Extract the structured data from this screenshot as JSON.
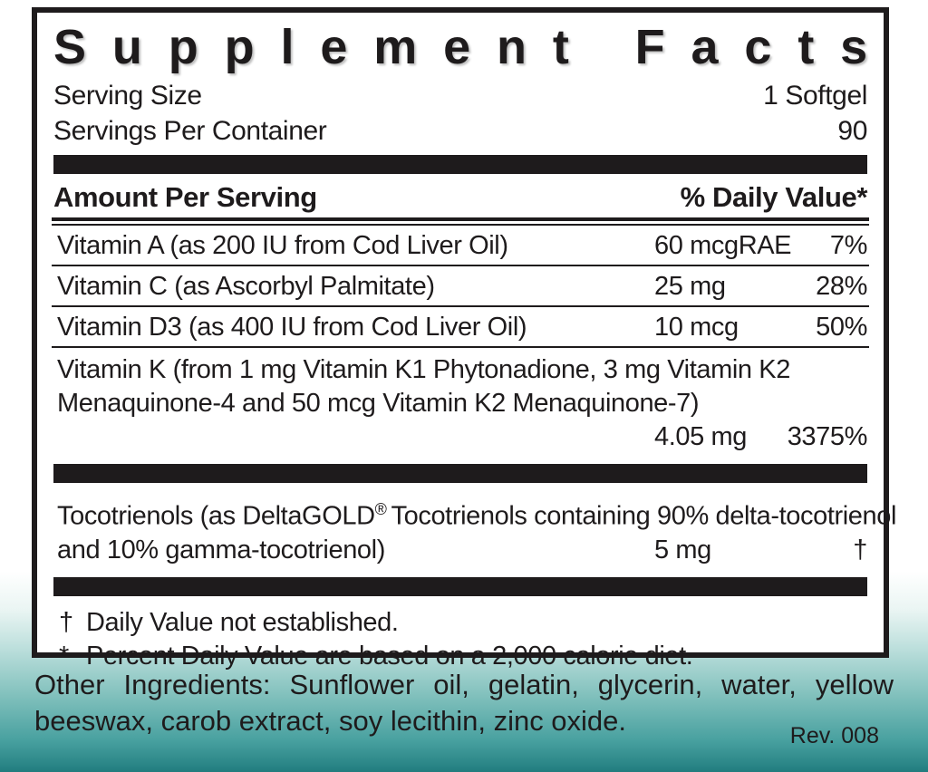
{
  "colors": {
    "ink": "#1e1b1c",
    "teal_mid": "#7fc5c0",
    "teal_deep": "#2b8687"
  },
  "panel": {
    "title": "Supplement Facts",
    "serving_rows": [
      {
        "label": "Serving Size",
        "value": "1 Softgel"
      },
      {
        "label": "Servings Per Container",
        "value": "90"
      }
    ],
    "columns": {
      "amount_header": "Amount Per Serving",
      "dv_header": "% Daily Value*"
    },
    "rows": [
      {
        "name": "Vitamin A (as 200 IU from Cod Liver Oil)",
        "amount": "60 mcgRAE",
        "dv": "7%"
      },
      {
        "name": "Vitamin C (as Ascorbyl Palmitate)",
        "amount": "25 mg",
        "dv": "28%"
      },
      {
        "name": "Vitamin D3 (as 400 IU from Cod Liver Oil)",
        "amount": "10 mcg",
        "dv": "50%"
      },
      {
        "name_line1": "Vitamin K (from 1 mg Vitamin K1 Phytonadione, 3 mg Vitamin K2",
        "name_line2": "Menaquinone-4 and 50 mcg Vitamin K2 Menaquinone-7)",
        "amount": "4.05 mg",
        "dv": "3375%"
      },
      {
        "name_line1_pre": "Tocotrienols (as DeltaGOLD",
        "trademark": "®",
        "name_line1_post": "Tocotrienols containing 90% delta-tocotrienol",
        "name_line2": "and 10% gamma-tocotrienol)",
        "amount": "5 mg",
        "dv": "†"
      }
    ],
    "footnotes": [
      {
        "symbol": "†",
        "text": "Daily Value not established."
      },
      {
        "symbol": "*",
        "text": "Percent Daily Value are based on a 2,000 calorie diet."
      }
    ]
  },
  "footer": {
    "other_ingredients_line1": "Other Ingredients: Sunflower oil, gelatin, glycerin, water, yellow",
    "other_ingredients_line2": "beeswax, carob extract, soy lecithin, zinc oxide.",
    "revision": "Rev. 008"
  }
}
